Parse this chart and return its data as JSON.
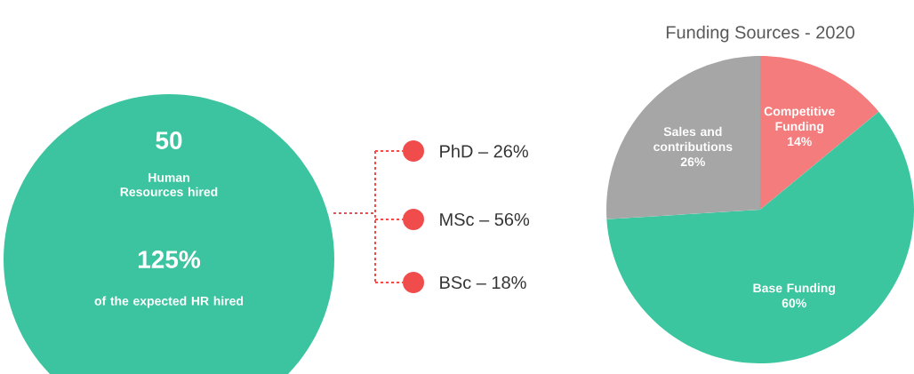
{
  "chart_data": [
    {
      "type": "other",
      "annotations": [
        "50",
        "Human Resources hired",
        "125%",
        "of the expected HR hired",
        "PhD – 26%",
        "MSc – 56%",
        "BSc – 18%"
      ]
    },
    {
      "type": "pie",
      "title": "Funding Sources - 2020",
      "categories": [
        "Competitive Funding",
        "Base Funding",
        "Sales and contributions"
      ],
      "values": [
        14,
        60,
        26
      ],
      "colors": [
        "#f47c7c",
        "#3cc6a0",
        "#a6a6a6"
      ],
      "value_labels": [
        "14%",
        "60%",
        "26%"
      ]
    }
  ]
}
